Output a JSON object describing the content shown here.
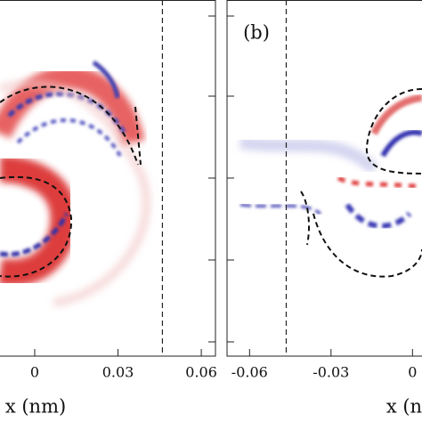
{
  "chart_data": [
    {
      "type": "heatmap",
      "xlim": [
        -0.0125,
        0.0651
      ],
      "xticks": [
        0,
        0.03,
        0.06
      ],
      "xlabel": "x (nm)",
      "vline": 0.046
    },
    {
      "type": "heatmap",
      "panel_label": "(b)",
      "xlim": [
        -0.0683,
        0.0035
      ],
      "xticks": [
        -0.06,
        -0.03,
        0
      ],
      "xlabel": "x (nm)",
      "vline": -0.0465
    }
  ]
}
